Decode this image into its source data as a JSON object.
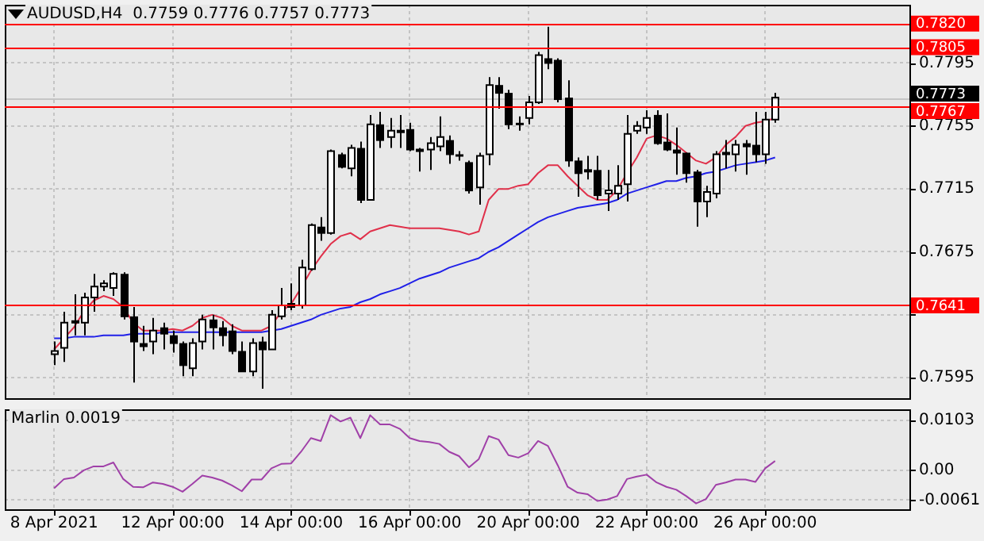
{
  "chart_data": [
    {
      "type": "candlestick",
      "title": "AUDUSD,H4  0.7759 0.7776 0.7757 0.7773",
      "categories": [
        null,
        null,
        null,
        null,
        null,
        null,
        null,
        null,
        null,
        null,
        null,
        null,
        null,
        null,
        null,
        null,
        null,
        null,
        null,
        null,
        null,
        null,
        null,
        null,
        null,
        null,
        null,
        null,
        null,
        null,
        null,
        null,
        null,
        null,
        null,
        null,
        null,
        null,
        null,
        null,
        null,
        null,
        null,
        null,
        null,
        null,
        null,
        null,
        null,
        null,
        null,
        null,
        null,
        null,
        null,
        null,
        null,
        null,
        null,
        null,
        null,
        null,
        null,
        null,
        null,
        null,
        null,
        null,
        null,
        null,
        null,
        null,
        null,
        null
      ],
      "ohlc": [
        [
          0.761,
          0.7618,
          0.7603,
          0.7612
        ],
        [
          0.7614,
          0.7637,
          0.7605,
          0.763
        ],
        [
          0.763,
          0.7648,
          0.7622,
          0.7631
        ],
        [
          0.763,
          0.7649,
          0.7622,
          0.7646
        ],
        [
          0.7646,
          0.7661,
          0.7637,
          0.7653
        ],
        [
          0.7653,
          0.7657,
          0.765,
          0.7655
        ],
        [
          0.7652,
          0.7662,
          0.7647,
          0.7661
        ],
        [
          0.7661,
          0.7662,
          0.7632,
          0.7634
        ],
        [
          0.7634,
          0.764,
          0.7592,
          0.7618
        ],
        [
          0.7617,
          0.7628,
          0.7612,
          0.7615
        ],
        [
          0.7618,
          0.7633,
          0.761,
          0.7625
        ],
        [
          0.7627,
          0.763,
          0.7613,
          0.7623
        ],
        [
          0.7622,
          0.7625,
          0.7611,
          0.7617
        ],
        [
          0.7617,
          0.7618,
          0.7596,
          0.7603
        ],
        [
          0.7601,
          0.762,
          0.7596,
          0.7617
        ],
        [
          0.7618,
          0.7635,
          0.7613,
          0.7632
        ],
        [
          0.7632,
          0.7635,
          0.7613,
          0.7627
        ],
        [
          0.7627,
          0.7631,
          0.7615,
          0.7622
        ],
        [
          0.7625,
          0.7629,
          0.761,
          0.7612
        ],
        [
          0.7612,
          0.7618,
          0.7599,
          0.7599
        ],
        [
          0.7599,
          0.762,
          0.7596,
          0.7617
        ],
        [
          0.7618,
          0.7621,
          0.7588,
          0.7613
        ],
        [
          0.7613,
          0.7638,
          0.7613,
          0.7635
        ],
        [
          0.7634,
          0.7652,
          0.7632,
          0.7641
        ],
        [
          0.764,
          0.7655,
          0.7638,
          0.7642
        ],
        [
          0.7641,
          0.767,
          0.7639,
          0.7665
        ],
        [
          0.7664,
          0.7693,
          0.7663,
          0.7692
        ],
        [
          0.7691,
          0.7697,
          0.7682,
          0.7687
        ],
        [
          0.7687,
          0.774,
          0.7686,
          0.7739
        ],
        [
          0.7737,
          0.7738,
          0.7728,
          0.7729
        ],
        [
          0.7728,
          0.7743,
          0.7723,
          0.7741
        ],
        [
          0.7741,
          0.7745,
          0.7706,
          0.7708
        ],
        [
          0.7708,
          0.7762,
          0.7708,
          0.7756
        ],
        [
          0.7756,
          0.7764,
          0.7741,
          0.7746
        ],
        [
          0.7748,
          0.776,
          0.7741,
          0.7752
        ],
        [
          0.7751,
          0.7762,
          0.7741,
          0.7752
        ],
        [
          0.7753,
          0.7757,
          0.7739,
          0.774
        ],
        [
          0.774,
          0.7741,
          0.7726,
          0.774
        ],
        [
          0.774,
          0.7748,
          0.7727,
          0.7744
        ],
        [
          0.7742,
          0.7761,
          0.7739,
          0.7748
        ],
        [
          0.7746,
          0.7749,
          0.7731,
          0.7737
        ],
        [
          0.7737,
          0.7739,
          0.7733,
          0.7736
        ],
        [
          0.7732,
          0.7733,
          0.7712,
          0.7714
        ],
        [
          0.7716,
          0.7738,
          0.7705,
          0.7736
        ],
        [
          0.7737,
          0.7786,
          0.773,
          0.7781
        ],
        [
          0.7781,
          0.7786,
          0.7766,
          0.7776
        ],
        [
          0.7776,
          0.7778,
          0.7753,
          0.7756
        ],
        [
          0.7757,
          0.7761,
          0.7752,
          0.7756
        ],
        [
          0.776,
          0.7774,
          0.7756,
          0.777
        ],
        [
          0.777,
          0.7802,
          0.7769,
          0.78
        ],
        [
          0.7798,
          0.7818,
          0.7791,
          0.7795
        ],
        [
          0.7797,
          0.7798,
          0.777,
          0.7772
        ],
        [
          0.7773,
          0.7784,
          0.7729,
          0.7733
        ],
        [
          0.7733,
          0.7735,
          0.771,
          0.7725
        ],
        [
          0.7727,
          0.7736,
          0.7721,
          0.7727
        ],
        [
          0.7727,
          0.7736,
          0.7708,
          0.7711
        ],
        [
          0.7712,
          0.7727,
          0.7701,
          0.7714
        ],
        [
          0.7712,
          0.773,
          0.7708,
          0.7717
        ],
        [
          0.7718,
          0.7762,
          0.7707,
          0.775
        ],
        [
          0.7752,
          0.7758,
          0.775,
          0.7755
        ],
        [
          0.7754,
          0.7765,
          0.775,
          0.776
        ],
        [
          0.7762,
          0.7765,
          0.7743,
          0.7744
        ],
        [
          0.7745,
          0.7763,
          0.7739,
          0.774
        ],
        [
          0.774,
          0.7754,
          0.7724,
          0.7738
        ],
        [
          0.7738,
          0.7738,
          0.7719,
          0.7725
        ],
        [
          0.7726,
          0.7727,
          0.7691,
          0.7707
        ],
        [
          0.7707,
          0.7717,
          0.7697,
          0.7713
        ],
        [
          0.7712,
          0.7739,
          0.7709,
          0.7737
        ],
        [
          0.7737,
          0.7746,
          0.7728,
          0.7738
        ],
        [
          0.7737,
          0.7746,
          0.7726,
          0.7743
        ],
        [
          0.7744,
          0.7746,
          0.7724,
          0.7742
        ],
        [
          0.7743,
          0.7764,
          0.7732,
          0.7737
        ],
        [
          0.7737,
          0.7764,
          0.7731,
          0.7759
        ],
        [
          0.7759,
          0.7776,
          0.7757,
          0.7773
        ]
      ],
      "series": [
        {
          "type": "line",
          "color": "#e0304a",
          "values": [
            0.7613,
            0.762,
            0.7627,
            0.7637,
            0.7644,
            0.7647,
            0.7645,
            0.764,
            0.763,
            0.7625,
            0.7625,
            0.7625,
            0.7626,
            0.7625,
            0.7628,
            0.7633,
            0.7635,
            0.7633,
            0.7628,
            0.7625,
            0.7625,
            0.7625,
            0.7628,
            0.7637,
            0.7642,
            0.7652,
            0.7663,
            0.7672,
            0.768,
            0.7685,
            0.7687,
            0.7683,
            0.7688,
            0.769,
            0.7692,
            0.7691,
            0.769,
            0.769,
            0.769,
            0.769,
            0.7689,
            0.7688,
            0.7686,
            0.7688,
            0.7708,
            0.7715,
            0.7715,
            0.7717,
            0.7718,
            0.7725,
            0.773,
            0.773,
            0.7723,
            0.7717,
            0.7711,
            0.7708,
            0.7708,
            0.7714,
            0.7725,
            0.7735,
            0.7747,
            0.7749,
            0.7747,
            0.7743,
            0.7738,
            0.7733,
            0.7731,
            0.7735,
            0.7743,
            0.7748,
            0.7755,
            0.7757,
            0.7758,
            0.776
          ]
        },
        {
          "type": "line",
          "color": "#2020e8",
          "values": [
            0.762,
            0.762,
            0.7621,
            0.7621,
            0.7621,
            0.7622,
            0.7622,
            0.7622,
            0.7623,
            0.7623,
            0.7623,
            0.7624,
            0.7624,
            0.7624,
            0.7624,
            0.7624,
            0.7624,
            0.7624,
            0.7624,
            0.7624,
            0.7624,
            0.7624,
            0.7625,
            0.7626,
            0.7628,
            0.763,
            0.7632,
            0.7635,
            0.7637,
            0.7639,
            0.764,
            0.7643,
            0.7645,
            0.7648,
            0.765,
            0.7652,
            0.7655,
            0.7658,
            0.766,
            0.7662,
            0.7665,
            0.7667,
            0.7669,
            0.7671,
            0.7675,
            0.7678,
            0.7682,
            0.7686,
            0.769,
            0.7694,
            0.7697,
            0.7699,
            0.7701,
            0.7703,
            0.7704,
            0.7705,
            0.7706,
            0.7708,
            0.7712,
            0.7714,
            0.7716,
            0.7718,
            0.772,
            0.772,
            0.7722,
            0.7723,
            0.7725,
            0.7726,
            0.7728,
            0.773,
            0.7731,
            0.7732,
            0.7733,
            0.7735
          ]
        }
      ],
      "ylim": [
        0.7582,
        0.7832
      ],
      "yticks": [
        0.7595,
        {
          "value": 0.7635,
          "label": null
        },
        0.7675,
        0.7715,
        0.7755,
        0.7795
      ],
      "ref_lines": [
        {
          "axis": "y",
          "value": 0.782,
          "label": "0.7820",
          "color": "#ff0000"
        },
        {
          "axis": "y",
          "value": 0.7805,
          "label": "0.7805",
          "color": "#ff0000"
        },
        {
          "axis": "y",
          "value": 0.7773,
          "label": "0.7773",
          "color": "#000000"
        },
        {
          "axis": "y",
          "value": 0.7767,
          "label": "0.7767",
          "color": "#ff0000"
        },
        {
          "axis": "y",
          "value": 0.7641,
          "label": "0.7641",
          "color": "#ff0000"
        }
      ],
      "grid": true,
      "tick_labels": "y"
    },
    {
      "type": "line",
      "title": "Marlin 0.0019",
      "categories": [
        "8 Apr 2021",
        null,
        null,
        null,
        null,
        null,
        null,
        null,
        null,
        null,
        null,
        null,
        "12 Apr 00:00",
        null,
        null,
        null,
        null,
        null,
        null,
        null,
        null,
        null,
        null,
        null,
        "14 Apr 00:00",
        null,
        null,
        null,
        null,
        null,
        null,
        null,
        null,
        null,
        null,
        null,
        "16 Apr 00:00",
        null,
        null,
        null,
        null,
        null,
        null,
        null,
        null,
        null,
        null,
        null,
        "20 Apr 00:00",
        null,
        null,
        null,
        null,
        null,
        null,
        null,
        null,
        null,
        null,
        null,
        "22 Apr 00:00",
        null,
        null,
        null,
        null,
        null,
        null,
        null,
        null,
        null,
        null,
        null,
        "26 Apr 00:00",
        null
      ],
      "series": [
        {
          "color": "#a040a8",
          "values": [
            -0.0037,
            -0.0018,
            -0.0015,
            0.0,
            0.0008,
            0.0008,
            0.0016,
            -0.0018,
            -0.0034,
            -0.0035,
            -0.0025,
            -0.0028,
            -0.0034,
            -0.0044,
            -0.0028,
            -0.0011,
            -0.0015,
            -0.0021,
            -0.0031,
            -0.0043,
            -0.0019,
            -0.0019,
            0.0004,
            0.0013,
            0.0014,
            0.0038,
            0.0066,
            0.006,
            0.0113,
            0.01,
            0.0108,
            0.0066,
            0.0113,
            0.0094,
            0.0094,
            0.0085,
            0.0066,
            0.006,
            0.0058,
            0.0054,
            0.0038,
            0.0029,
            0.0006,
            0.0023,
            0.007,
            0.0063,
            0.0031,
            0.0026,
            0.0035,
            0.006,
            0.005,
            0.001,
            -0.0034,
            -0.0046,
            -0.0049,
            -0.0063,
            -0.006,
            -0.0053,
            -0.0018,
            -0.0013,
            -0.0009,
            -0.0025,
            -0.0034,
            -0.004,
            -0.0053,
            -0.0068,
            -0.0059,
            -0.003,
            -0.0025,
            -0.0019,
            -0.0019,
            -0.0024,
            0.0004,
            0.0019
          ]
        }
      ],
      "ylim": [
        -0.008,
        0.0125
      ],
      "yticks": [
        0.0103,
        {
          "value": 0,
          "label": "0.00"
        },
        -0.0061
      ],
      "grid": true
    }
  ]
}
